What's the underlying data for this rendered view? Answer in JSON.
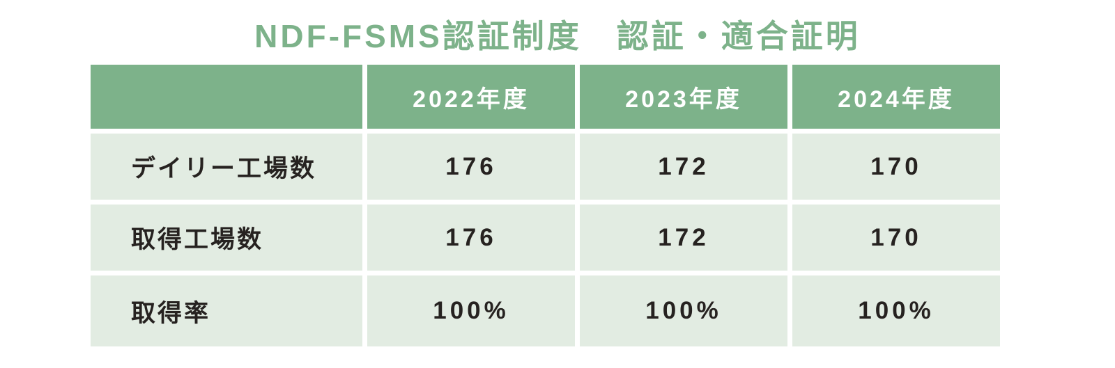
{
  "title": "NDF-FSMS認証制度　認証・適合証明",
  "colors": {
    "title_green": "#7db28a",
    "header_bg": "#7db28a",
    "header_text": "#ffffff",
    "row_bg": "#e2ece2",
    "body_text": "#262220",
    "gutter": "#ffffff"
  },
  "table": {
    "columns": [
      "",
      "2022年度",
      "2023年度",
      "2024年度"
    ],
    "rows": [
      {
        "label": "デイリー工場数",
        "values": [
          "176",
          "172",
          "170"
        ]
      },
      {
        "label": "取得工場数",
        "values": [
          "176",
          "172",
          "170"
        ]
      },
      {
        "label": "取得率",
        "values": [
          "100%",
          "100%",
          "100%"
        ]
      }
    ]
  },
  "chart_data": {
    "type": "table",
    "title": "NDF-FSMS認証制度　認証・適合証明",
    "categories": [
      "2022年度",
      "2023年度",
      "2024年度"
    ],
    "series": [
      {
        "name": "デイリー工場数",
        "values": [
          176,
          172,
          170
        ]
      },
      {
        "name": "取得工場数",
        "values": [
          176,
          172,
          170
        ]
      },
      {
        "name": "取得率",
        "values": [
          "100%",
          "100%",
          "100%"
        ]
      }
    ],
    "layout": {
      "header_position": "top-row",
      "gridlines": "white-gutters",
      "legend": "none"
    }
  }
}
